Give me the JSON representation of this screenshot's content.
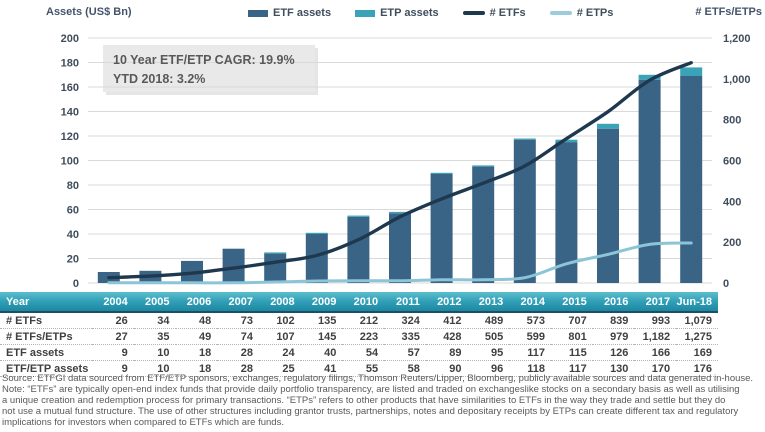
{
  "header": {
    "left_axis_title": "Assets (US$ Bn)",
    "right_axis_title": "# ETFs/ETPs",
    "legend": [
      {
        "label": "ETF assets",
        "type": "rect",
        "color": "#3A6485"
      },
      {
        "label": "ETP assets",
        "type": "rect",
        "color": "#3BA3B7"
      },
      {
        "label": "# ETFs",
        "type": "line",
        "color": "#1E394F"
      },
      {
        "label": "# ETPs",
        "type": "line",
        "color": "#9CCBDB"
      }
    ]
  },
  "annotation": {
    "line1": "10 Year ETF/ETP CAGR: 19.9%",
    "line2": "YTD 2018: 3.2%"
  },
  "chart_data": {
    "type": "bar",
    "subtype": "stacked bars (left axis) with two lines (right axis)",
    "categories": [
      "2004",
      "2005",
      "2006",
      "2007",
      "2008",
      "2009",
      "2010",
      "2011",
      "2012",
      "2013",
      "2014",
      "2015",
      "2016",
      "2017",
      "Jun-18"
    ],
    "series": [
      {
        "name": "ETF assets",
        "render": "bar",
        "axis": "left",
        "values": [
          9,
          10,
          18,
          28,
          24,
          40,
          54,
          57,
          89,
          95,
          117,
          115,
          126,
          166,
          169
        ]
      },
      {
        "name": "ETP assets",
        "render": "bar-stacked-top",
        "axis": "left",
        "values": [
          0,
          0,
          0,
          0,
          1,
          1,
          1,
          1,
          1,
          1,
          1,
          2,
          4,
          4,
          7
        ]
      },
      {
        "name": "# ETFs",
        "render": "line",
        "axis": "right",
        "values": [
          26,
          34,
          48,
          73,
          102,
          135,
          212,
          324,
          412,
          489,
          573,
          707,
          839,
          993,
          1079
        ]
      },
      {
        "name": "# ETPs",
        "render": "line",
        "axis": "right",
        "values": [
          1,
          1,
          1,
          1,
          5,
          10,
          11,
          11,
          16,
          16,
          26,
          94,
          140,
          189,
          196
        ]
      }
    ],
    "left_axis": {
      "label": "Assets (US$ Bn)",
      "min": 0,
      "max": 200,
      "step": 20,
      "ticks": [
        "0",
        "20",
        "40",
        "60",
        "80",
        "100",
        "120",
        "140",
        "160",
        "180",
        "200"
      ]
    },
    "right_axis": {
      "label": "# ETFs/ETPs",
      "min": 0,
      "max": 1200,
      "step": 200,
      "ticks": [
        "0",
        "200",
        "400",
        "600",
        "800",
        "1,000",
        "1,200"
      ]
    },
    "grid": "horizontal, light gray, every 20 left-axis units",
    "legend_position": "top center"
  },
  "table": {
    "header": [
      "Year",
      "2004",
      "2005",
      "2006",
      "2007",
      "2008",
      "2009",
      "2010",
      "2011",
      "2012",
      "2013",
      "2014",
      "2015",
      "2016",
      "2017",
      "Jun-18"
    ],
    "rows": [
      {
        "label": "# ETFs",
        "values": [
          "26",
          "34",
          "48",
          "73",
          "102",
          "135",
          "212",
          "324",
          "412",
          "489",
          "573",
          "707",
          "839",
          "993",
          "1,079"
        ]
      },
      {
        "label": "# ETFs/ETPs",
        "values": [
          "27",
          "35",
          "49",
          "74",
          "107",
          "145",
          "223",
          "335",
          "428",
          "505",
          "599",
          "801",
          "979",
          "1,182",
          "1,275"
        ]
      },
      {
        "label": "ETF assets",
        "values": [
          "9",
          "10",
          "18",
          "28",
          "24",
          "40",
          "54",
          "57",
          "89",
          "95",
          "117",
          "115",
          "126",
          "166",
          "169"
        ]
      },
      {
        "label": "ETF/ETP assets",
        "values": [
          "9",
          "10",
          "18",
          "28",
          "25",
          "41",
          "55",
          "58",
          "90",
          "96",
          "118",
          "117",
          "130",
          "170",
          "176"
        ]
      }
    ]
  },
  "footer": {
    "lines": [
      "Source: ETFGI data sourced from ETF/ETP sponsors, exchanges, regulatory filings, Thomson Reuters/Lipper, Bloomberg, publicly available sources and data generated in-house.",
      "Note: “ETFs” are typically open-end index funds that provide daily portfolio transparency, are listed and traded on exchangeslike stocks on a secondary basis as well as utilising",
      "a unique creation and redemption process for primary transactions. “ETPs” refers to other products that have similarities to ETFs in the way they trade and settle but they do",
      "not use a mutual fund structure. The use of other structures including grantor trusts, partnerships, notes and depositary receipts by ETPs can create different tax and regulatory",
      "implications for investors when compared to ETFs which are funds."
    ]
  },
  "colors": {
    "bar_etf": "#3A6485",
    "bar_etp": "#3BA3B7",
    "line_etfs": "#1E394F",
    "line_etps": "#8CC4D8",
    "grid": "#D9D9D9",
    "axis_text": "#3F4D5C",
    "table_header_top": "#5BBECD",
    "table_header_bottom": "#1C89A3",
    "annotation_bg": "#E9E9E9",
    "note_text": "#595959"
  }
}
